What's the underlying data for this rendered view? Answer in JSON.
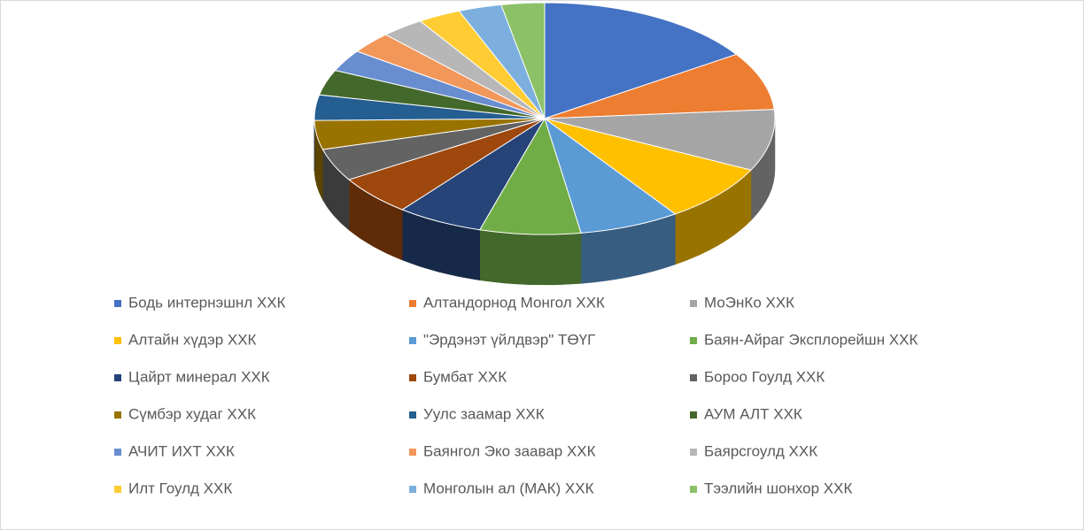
{
  "chart_data": {
    "type": "pie",
    "categories": [
      "Бодь интернэшнл ХХК",
      "Алтандорнод Монгол ХХК",
      "МоЭнКо ХХК",
      "Алтайн хүдэр ХХК",
      "\"Эрдэнэт үйлдвэр\" ТӨҮГ",
      "Баян-Айраг Эксплорейшн ХХК",
      "Цайрт минерал ХХК",
      "Бумбат ХХК",
      "Бороо Гоулд ХХК",
      "Сүмбэр худаг ХХК",
      "Уулс заамар ХХК",
      "АУМ АЛТ ХХК",
      "АЧИТ ИХТ ХХК",
      "Баянгол Эко заавар ХХК",
      "Баярсгоулд ХХК",
      "Илт Гоулд ХХК",
      "Монголын ал (МАК) ХХК",
      "Тээлийн шонхор ХХК"
    ],
    "values": [
      15.5,
      8,
      8.5,
      8,
      7,
      7,
      6,
      5.5,
      4.5,
      4,
      3.5,
      3.5,
      3,
      3,
      3,
      3,
      3,
      3
    ],
    "colors": [
      "#4472c4",
      "#ed7d31",
      "#a5a5a5",
      "#ffc000",
      "#5b9bd5",
      "#70ad47",
      "#264478",
      "#9e480e",
      "#636363",
      "#997300",
      "#255e91",
      "#43682b",
      "#698ed0",
      "#f1975a",
      "#b7b7b7",
      "#ffcd33",
      "#7cafdd",
      "#8cc168"
    ],
    "legend": "bottom",
    "three_d": true
  }
}
